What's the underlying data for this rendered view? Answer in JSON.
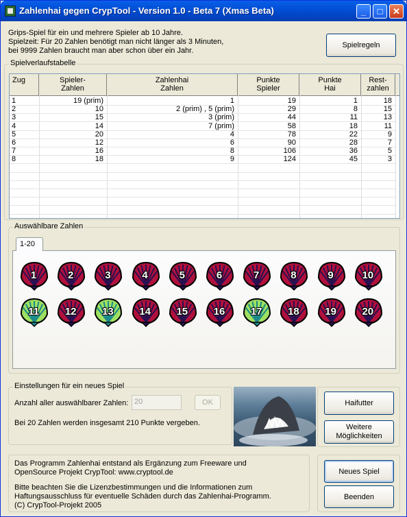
{
  "window": {
    "title": "Zahlenhai gegen CrypTool - Version 1.0 - Beta 7 (Xmas Beta)",
    "minimize_glyph": "_",
    "maximize_glyph": "□",
    "close_glyph": "✕"
  },
  "intro": {
    "line1": "Grips-Spiel für ein und mehrere Spieler ab 10 Jahre.",
    "line2": "Spielzeit: Für 20 Zahlen benötigt man nicht länger als 3 Minuten,",
    "line3": "bei 9999 Zahlen braucht man aber schon über ein Jahr."
  },
  "buttons": {
    "rules": "Spielregeln",
    "haifutter": "Haifutter",
    "weitere_line1": "Weitere",
    "weitere_line2": "Möglichkeiten",
    "new_game": "Neues Spiel",
    "quit": "Beenden",
    "ok": "OK"
  },
  "history": {
    "label": "Spielverlaufstabelle",
    "headers": {
      "zug": "Zug",
      "spieler_1": "Spieler-",
      "spieler_2": "Zahlen",
      "hai_1": "Zahlenhai",
      "hai_2": "Zahlen",
      "ps_1": "Punkte",
      "ps_2": "Spieler",
      "ph_1": "Punkte",
      "ph_2": "Hai",
      "rest_1": "Rest-",
      "rest_2": "zahlen"
    },
    "rows": [
      {
        "zug": "1",
        "spieler": "19 (prim)",
        "hai": "1",
        "ps": "19",
        "ph": "1",
        "rest": "18"
      },
      {
        "zug": "2",
        "spieler": "10",
        "hai": "2 (prim)  , 5 (prim)",
        "ps": "29",
        "ph": "8",
        "rest": "15"
      },
      {
        "zug": "3",
        "spieler": "15",
        "hai": "3 (prim)",
        "ps": "44",
        "ph": "11",
        "rest": "13"
      },
      {
        "zug": "4",
        "spieler": "14",
        "hai": "7 (prim)",
        "ps": "58",
        "ph": "18",
        "rest": "11"
      },
      {
        "zug": "5",
        "spieler": "20",
        "hai": "4",
        "ps": "78",
        "ph": "22",
        "rest": "9"
      },
      {
        "zug": "6",
        "spieler": "12",
        "hai": "6",
        "ps": "90",
        "ph": "28",
        "rest": "7"
      },
      {
        "zug": "7",
        "spieler": "16",
        "hai": "8",
        "ps": "106",
        "ph": "36",
        "rest": "5"
      },
      {
        "zug": "8",
        "spieler": "18",
        "hai": "9",
        "ps": "124",
        "ph": "45",
        "rest": "3"
      }
    ]
  },
  "numbers": {
    "label": "Auswählbare Zahlen",
    "tab": "1-20",
    "items": [
      {
        "n": "1",
        "state": "taken"
      },
      {
        "n": "2",
        "state": "taken"
      },
      {
        "n": "3",
        "state": "taken"
      },
      {
        "n": "4",
        "state": "taken"
      },
      {
        "n": "5",
        "state": "taken"
      },
      {
        "n": "6",
        "state": "taken"
      },
      {
        "n": "7",
        "state": "taken"
      },
      {
        "n": "8",
        "state": "taken"
      },
      {
        "n": "9",
        "state": "taken"
      },
      {
        "n": "10",
        "state": "taken"
      },
      {
        "n": "11",
        "state": "available"
      },
      {
        "n": "12",
        "state": "taken"
      },
      {
        "n": "13",
        "state": "available"
      },
      {
        "n": "14",
        "state": "taken"
      },
      {
        "n": "15",
        "state": "taken"
      },
      {
        "n": "16",
        "state": "taken"
      },
      {
        "n": "17",
        "state": "available"
      },
      {
        "n": "18",
        "state": "taken"
      },
      {
        "n": "19",
        "state": "taken"
      },
      {
        "n": "20",
        "state": "taken"
      }
    ],
    "colors": {
      "taken": "#b0103c",
      "taken_dark": "#2a1050",
      "available": "#9fe060",
      "available_dark": "#1a8a8a"
    }
  },
  "settings": {
    "label": "Einstellungen für ein neues Spiel",
    "count_label": "Anzahl aller auswählbarer Zahlen:",
    "count_value": "20",
    "points_text": "Bei 20 Zahlen werden insgesamt 210 Punkte vergeben."
  },
  "disclaimer": {
    "line1": "Das Programm Zahlenhai entstand als Ergänzung zum Freeware und",
    "line2": "OpenSource Projekt CrypTool: www.cryptool.de",
    "line3": "Bitte beachten Sie die Lizenzbestimmungen und die Informationen zum",
    "line4": "Haftungsausschluss für eventuelle Schäden durch das Zahlenhai-Programm.",
    "line5": "(C) CrypTool-Projekt 2005"
  }
}
